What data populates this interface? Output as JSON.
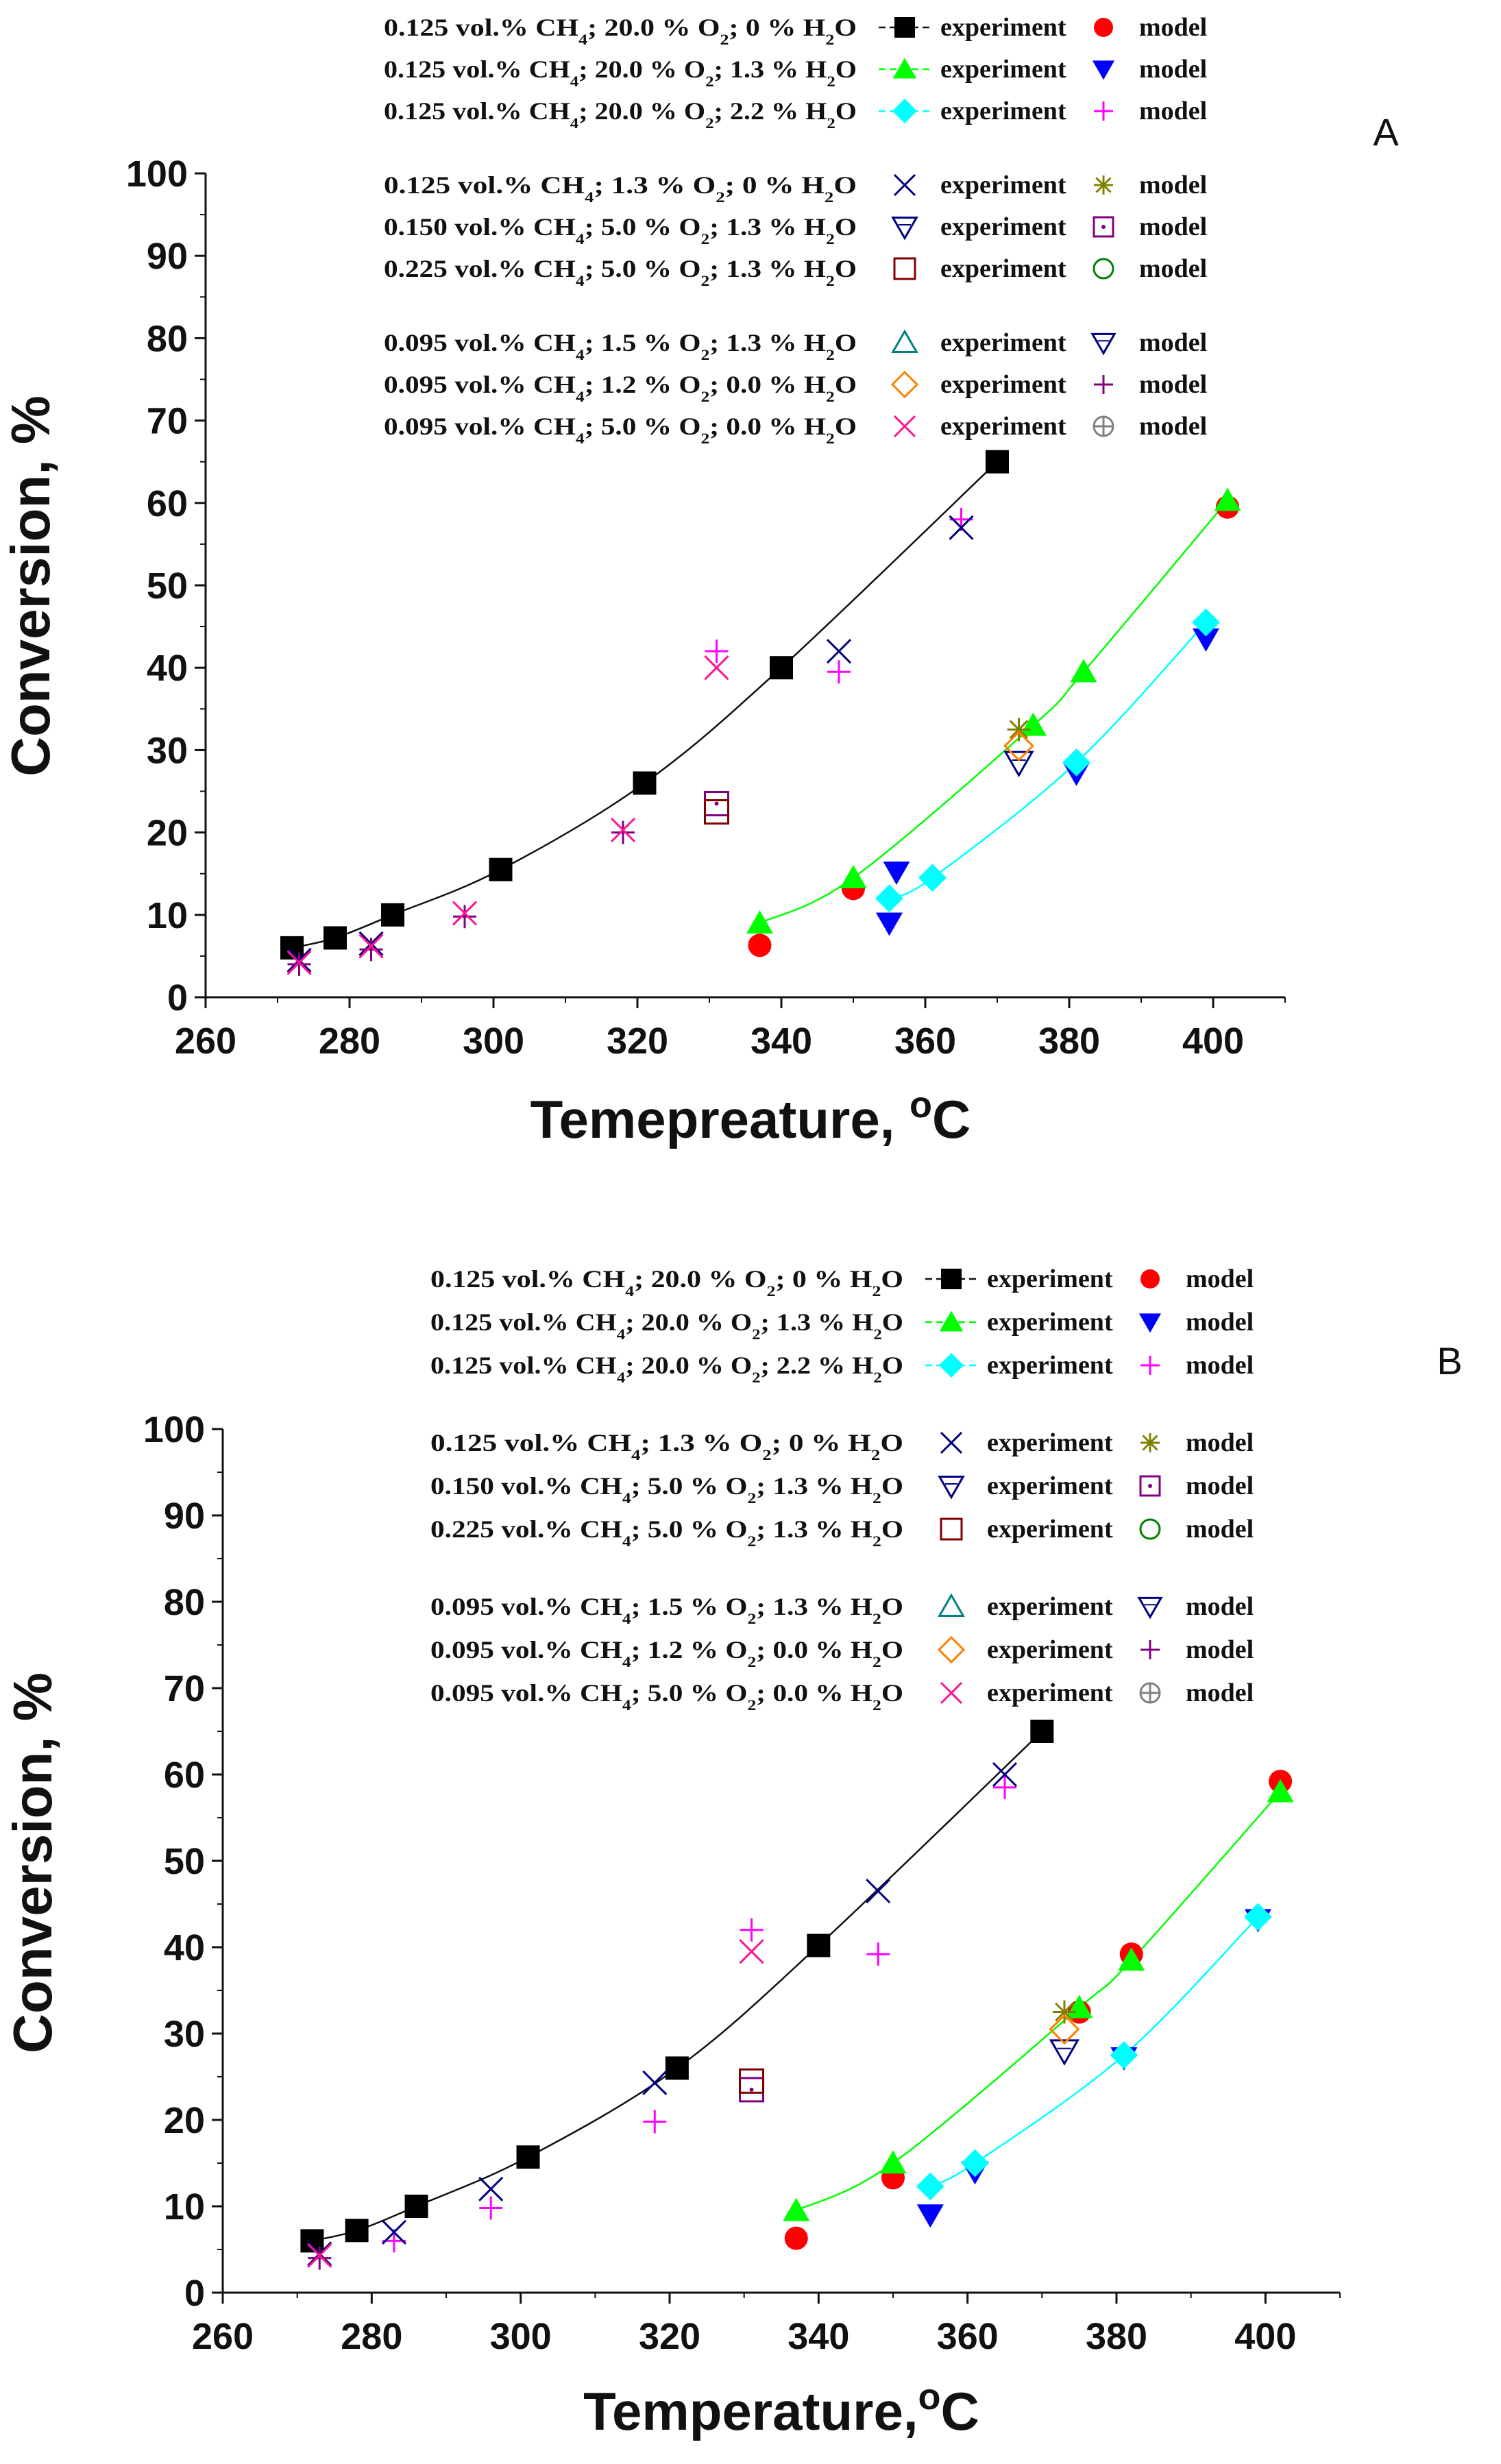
{
  "chart_data": [
    {
      "type": "scatter",
      "panel_label": "A",
      "xlabel": "Temepreature, ",
      "xlabel_sup": "o",
      "xlabel_tail": "C",
      "ylabel": "Conversion, %",
      "xlim": [
        260,
        410
      ],
      "ylim": [
        0,
        100
      ],
      "x_ticks": [
        260,
        280,
        300,
        320,
        340,
        360,
        380,
        400
      ],
      "y_ticks": [
        0,
        10,
        20,
        30,
        40,
        50,
        60,
        70,
        80,
        90,
        100
      ],
      "legend": [
        {
          "ref": "s1",
          "label": "experiment",
          "model_label": "model",
          "model_ref": "m1",
          "condition": "0.125 vol.% CH₄; 20.0 % O₂;   0 % H₂O"
        },
        {
          "ref": "s2",
          "label": "experiment",
          "model_label": "model",
          "model_ref": "m2",
          "condition": "0.125 vol.% CH₄; 20.0 % O₂; 1.3 % H₂O"
        },
        {
          "ref": "s3",
          "label": "experiment",
          "model_label": "model",
          "model_ref": "m3",
          "condition": "0.125 vol.% CH₄; 20.0 % O₂; 2.2 % H₂O"
        },
        {
          "ref": "s4",
          "label": "experiment",
          "model_label": "model",
          "model_ref": "m4",
          "condition": "0.125 vol.% CH₄; 1.3 % O₂;    0 % H₂O"
        },
        {
          "ref": "s5",
          "label": "experiment",
          "model_label": "model",
          "model_ref": "m5",
          "condition": "0.150 vol.% CH₄; 5.0 % O₂;  1.3 % H₂O"
        },
        {
          "ref": "s6",
          "label": "experiment",
          "model_label": "model",
          "model_ref": "m6",
          "condition": "0.225 vol.% CH₄;  5.0 % O₂;  1.3 % H₂O"
        },
        {
          "ref": "s7",
          "label": "experiment",
          "model_label": "model",
          "model_ref": "m7",
          "condition": "0.095 vol.% CH₄;  1.5 % O₂;  1.3 % H₂O"
        },
        {
          "ref": "s8",
          "label": "experiment",
          "model_label": "model",
          "model_ref": "m8",
          "condition": "0.095 vol.% CH₄;  1.2 % O₂;  0.0 % H₂O"
        },
        {
          "ref": "s9",
          "label": "experiment",
          "model_label": "model",
          "model_ref": "m9",
          "condition": "0.095 vol.% CH₄;  5.0 % O₂;  0.0 % H₂O"
        }
      ],
      "series": [
        {
          "id": "s1",
          "marker": "filled-square",
          "color": "#000000",
          "line": true,
          "points": [
            [
              272,
              6
            ],
            [
              278,
              7.2
            ],
            [
              286,
              10
            ],
            [
              301,
              15.5
            ],
            [
              321,
              26
            ],
            [
              340,
              40
            ],
            [
              370,
              65
            ]
          ]
        },
        {
          "id": "m1",
          "marker": "filled-circle",
          "color": "#ff0000",
          "line": false,
          "points": [
            [
              337,
              6.3
            ],
            [
              350,
              13.2
            ],
            [
              402,
              59.5
            ]
          ]
        },
        {
          "id": "s2",
          "marker": "filled-triangle-up",
          "color": "#00ff00",
          "line": true,
          "points": [
            [
              337,
              9
            ],
            [
              350,
              14.5
            ],
            [
              375,
              33
            ],
            [
              382,
              39.5
            ],
            [
              402,
              60.3
            ]
          ]
        },
        {
          "id": "m2",
          "marker": "filled-triangle-down",
          "color": "#0000ff",
          "line": false,
          "points": [
            [
              355,
              9
            ],
            [
              356,
              15.2
            ],
            [
              381,
              27.2
            ],
            [
              399,
              43.5
            ]
          ]
        },
        {
          "id": "s3",
          "marker": "filled-diamond",
          "color": "#00ffff",
          "line": true,
          "points": [
            [
              355,
              12
            ],
            [
              361,
              14.5
            ],
            [
              381,
              28.5
            ],
            [
              399,
              45.5
            ]
          ]
        },
        {
          "id": "m3",
          "marker": "plus",
          "color": "#ff00ff",
          "line": false,
          "points": [
            [
              331,
              42
            ],
            [
              348,
              39.5
            ],
            [
              365,
              58
            ]
          ]
        },
        {
          "id": "s4",
          "marker": "x",
          "color": "#000080",
          "line": false,
          "points": [
            [
              273,
              4.5
            ],
            [
              283,
              6.5
            ],
            [
              348,
              42
            ],
            [
              365,
              57
            ]
          ]
        },
        {
          "id": "m4",
          "marker": "asterisk",
          "color": "#808000",
          "line": false,
          "points": [
            [
              373,
              32.5
            ]
          ]
        },
        {
          "id": "s5",
          "marker": "open-triangle-down",
          "color": "#000080",
          "line": false,
          "points": [
            [
              373,
              28.5
            ]
          ]
        },
        {
          "id": "m5",
          "marker": "square-dot",
          "color": "#800080",
          "line": false,
          "points": [
            [
              331,
              23.5
            ]
          ]
        },
        {
          "id": "s6",
          "marker": "open-square",
          "color": "#800000",
          "line": false,
          "points": [
            [
              331,
              22.5
            ]
          ]
        },
        {
          "id": "m6",
          "marker": "open-circle",
          "color": "#008000",
          "line": false,
          "points": []
        },
        {
          "id": "s7",
          "marker": "open-triangle-up",
          "color": "#008080",
          "line": false,
          "points": []
        },
        {
          "id": "m7",
          "marker": "open-triangle-down",
          "color": "#000080",
          "line": false,
          "points": []
        },
        {
          "id": "s8",
          "marker": "open-diamond",
          "color": "#ff8000",
          "line": false,
          "points": [
            [
              373,
              30.5
            ]
          ]
        },
        {
          "id": "m8",
          "marker": "plus",
          "color": "#800080",
          "line": false,
          "points": [
            [
              273,
              4
            ],
            [
              283,
              5.8
            ],
            [
              296,
              9.8
            ],
            [
              318,
              20
            ]
          ]
        },
        {
          "id": "s9",
          "marker": "x",
          "color": "#ff1493",
          "line": false,
          "points": [
            [
              273,
              4.2
            ],
            [
              283,
              6.2
            ],
            [
              296,
              10.2
            ],
            [
              318,
              20.3
            ],
            [
              331,
              40
            ]
          ]
        },
        {
          "id": "m9",
          "marker": "circle-plus",
          "color": "#808080",
          "line": false,
          "points": []
        }
      ]
    },
    {
      "type": "scatter",
      "panel_label": "B",
      "xlabel": "Temperature,",
      "xlabel_sup": "o",
      "xlabel_tail": "C",
      "ylabel": "Conversion, %",
      "xlim": [
        260,
        410
      ],
      "ylim": [
        0,
        100
      ],
      "x_ticks": [
        260,
        280,
        300,
        320,
        340,
        360,
        380,
        400
      ],
      "y_ticks": [
        0,
        10,
        20,
        30,
        40,
        50,
        60,
        70,
        80,
        90,
        100
      ],
      "legend": [
        {
          "ref": "s1",
          "label": "experiment",
          "model_label": "model",
          "model_ref": "m1",
          "condition": "0.125 vol.% CH₄; 20.0 % O₂;   0 % H₂O"
        },
        {
          "ref": "s2",
          "label": "experiment",
          "model_label": "model",
          "model_ref": "m2",
          "condition": "0.125 vol.% CH₄; 20.0 % O₂; 1.3 % H₂O"
        },
        {
          "ref": "s3",
          "label": "experiment",
          "model_label": "model",
          "model_ref": "m3",
          "condition": "0.125 vol.% CH₄; 20.0 % O₂; 2.2 % H₂O"
        },
        {
          "ref": "s4",
          "label": "experiment",
          "model_label": "model",
          "model_ref": "m4",
          "condition": "0.125 vol.% CH₄; 1.3 % O₂;    0 % H₂O"
        },
        {
          "ref": "s5",
          "label": "experiment",
          "model_label": "model",
          "model_ref": "m5",
          "condition": "0.150 vol.% CH₄; 5.0 % O₂;  1.3 % H₂O"
        },
        {
          "ref": "s6",
          "label": "experiment",
          "model_label": "model",
          "model_ref": "m6",
          "condition": "0.225 vol.% CH₄;  5.0 % O₂;  1.3 % H₂O"
        },
        {
          "ref": "s7",
          "label": "experiment",
          "model_label": "model",
          "model_ref": "m7",
          "condition": "0.095 vol.% CH₄;  1.5 % O₂;  1.3 % H₂O"
        },
        {
          "ref": "s8",
          "label": "experiment",
          "model_label": "model",
          "model_ref": "m8",
          "condition": "0.095 vol.% CH₄;  1.2 % O₂;  0.0 % H₂O"
        },
        {
          "ref": "s9",
          "label": "experiment",
          "model_label": "model",
          "model_ref": "m9",
          "condition": "0.095 vol.% CH₄;  5.0 % O₂;  0.0 % H₂O"
        }
      ],
      "series": [
        {
          "id": "s1",
          "marker": "filled-square",
          "color": "#000000",
          "line": true,
          "points": [
            [
              272,
              6
            ],
            [
              278,
              7.2
            ],
            [
              286,
              10
            ],
            [
              301,
              15.7
            ],
            [
              321,
              26
            ],
            [
              340,
              40.2
            ],
            [
              370,
              65
            ]
          ]
        },
        {
          "id": "m1",
          "marker": "filled-circle",
          "color": "#ff0000",
          "line": false,
          "points": [
            [
              337,
              6.3
            ],
            [
              350,
              13.3
            ],
            [
              375,
              32.5
            ],
            [
              382,
              39.2
            ],
            [
              402,
              59.2
            ]
          ]
        },
        {
          "id": "s2",
          "marker": "filled-triangle-up",
          "color": "#00ff00",
          "line": true,
          "points": [
            [
              337,
              9.5
            ],
            [
              350,
              15
            ],
            [
              375,
              33
            ],
            [
              382,
              38.5
            ],
            [
              402,
              58
            ]
          ]
        },
        {
          "id": "m2",
          "marker": "filled-triangle-down",
          "color": "#0000ff",
          "line": false,
          "points": [
            [
              355,
              9
            ],
            [
              361,
              14
            ],
            [
              381,
              27.2
            ],
            [
              399,
              43.2
            ]
          ]
        },
        {
          "id": "s3",
          "marker": "filled-diamond",
          "color": "#00ffff",
          "line": true,
          "points": [
            [
              355,
              12.3
            ],
            [
              361,
              15
            ],
            [
              381,
              27.5
            ],
            [
              399,
              43.5
            ]
          ]
        },
        {
          "id": "m3",
          "marker": "plus",
          "color": "#ff00ff",
          "line": false,
          "points": [
            [
              283,
              6
            ],
            [
              296,
              9.8
            ],
            [
              318,
              19.8
            ],
            [
              331,
              42
            ],
            [
              348,
              39.2
            ],
            [
              365,
              58.5
            ]
          ]
        },
        {
          "id": "s4",
          "marker": "x",
          "color": "#000080",
          "line": false,
          "points": [
            [
              273,
              4.5
            ],
            [
              283,
              7
            ],
            [
              296,
              12
            ],
            [
              318,
              24.3
            ],
            [
              348,
              46.5
            ],
            [
              365,
              60
            ]
          ]
        },
        {
          "id": "m4",
          "marker": "asterisk",
          "color": "#808000",
          "line": false,
          "points": [
            [
              373,
              32.5
            ]
          ]
        },
        {
          "id": "s5",
          "marker": "open-triangle-down",
          "color": "#000080",
          "line": false,
          "points": [
            [
              373,
              28
            ]
          ]
        },
        {
          "id": "m5",
          "marker": "square-dot",
          "color": "#800080",
          "line": false,
          "points": [
            [
              331,
              23.5
            ]
          ]
        },
        {
          "id": "s6",
          "marker": "open-square",
          "color": "#800000",
          "line": false,
          "points": [
            [
              331,
              24.5
            ]
          ]
        },
        {
          "id": "m6",
          "marker": "open-circle",
          "color": "#008000",
          "line": false,
          "points": []
        },
        {
          "id": "s7",
          "marker": "open-triangle-up",
          "color": "#008080",
          "line": false,
          "points": []
        },
        {
          "id": "m7",
          "marker": "open-triangle-down",
          "color": "#000080",
          "line": false,
          "points": []
        },
        {
          "id": "s8",
          "marker": "open-diamond",
          "color": "#ff8000",
          "line": false,
          "points": [
            [
              373,
              30.5
            ]
          ]
        },
        {
          "id": "m8",
          "marker": "plus",
          "color": "#800080",
          "line": false,
          "points": [
            [
              273,
              4
            ]
          ]
        },
        {
          "id": "s9",
          "marker": "x",
          "color": "#ff1493",
          "line": false,
          "points": [
            [
              273,
              4.3
            ],
            [
              331,
              39.5
            ]
          ]
        },
        {
          "id": "m9",
          "marker": "circle-plus",
          "color": "#808080",
          "line": false,
          "points": []
        }
      ]
    }
  ]
}
